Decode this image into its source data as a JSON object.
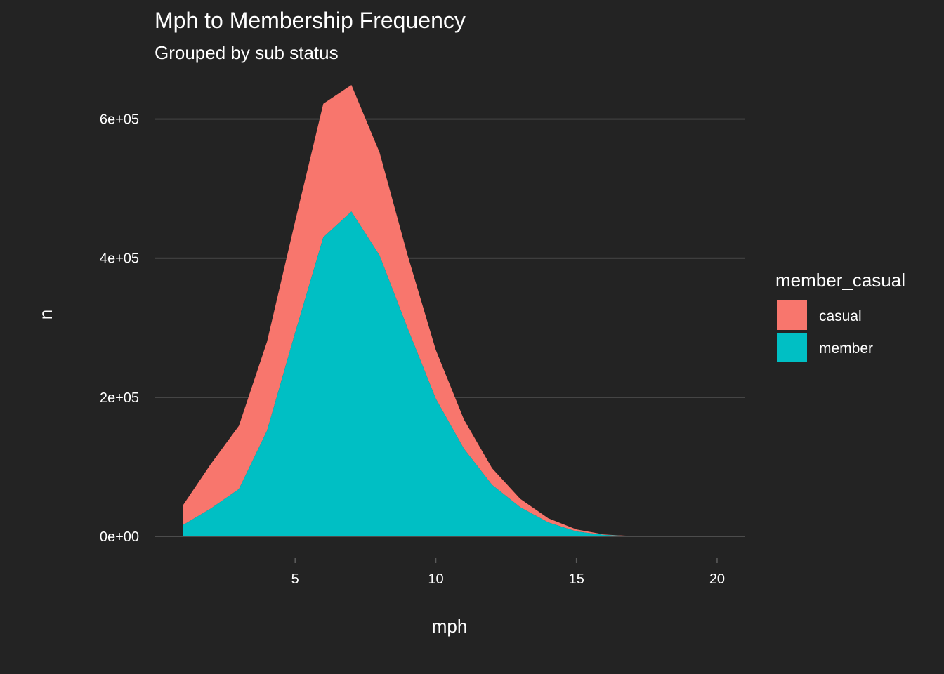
{
  "chart_data": {
    "type": "area",
    "stacked": true,
    "title": "Mph to Membership Frequency",
    "subtitle": "Grouped by sub status",
    "xlabel": "mph",
    "ylabel": "n",
    "xlim": [
      0,
      21
    ],
    "ylim": [
      0,
      650000
    ],
    "x_ticks": [
      5,
      10,
      15,
      20
    ],
    "y_ticks": [
      0,
      200000,
      400000,
      600000
    ],
    "y_tick_labels": [
      "0e+00",
      "2e+05",
      "4e+05",
      "6e+05"
    ],
    "grid": "horizontal-major",
    "legend": {
      "title": "member_casual",
      "position": "right"
    },
    "x": [
      1,
      2,
      3,
      4,
      5,
      6,
      7,
      8,
      9,
      10,
      11,
      12,
      13,
      14,
      15,
      16,
      17
    ],
    "series": [
      {
        "name": "member",
        "color": "#00BFC4",
        "values": [
          16000,
          40000,
          68000,
          152000,
          293000,
          430000,
          467000,
          404000,
          299000,
          198000,
          126000,
          74000,
          42000,
          20000,
          7000,
          2000,
          300
        ]
      },
      {
        "name": "casual",
        "color": "#F8766D",
        "values": [
          28000,
          64000,
          91000,
          128000,
          160000,
          192000,
          182000,
          148000,
          105000,
          70000,
          42000,
          24000,
          12000,
          6000,
          3000,
          700,
          100
        ]
      }
    ]
  }
}
